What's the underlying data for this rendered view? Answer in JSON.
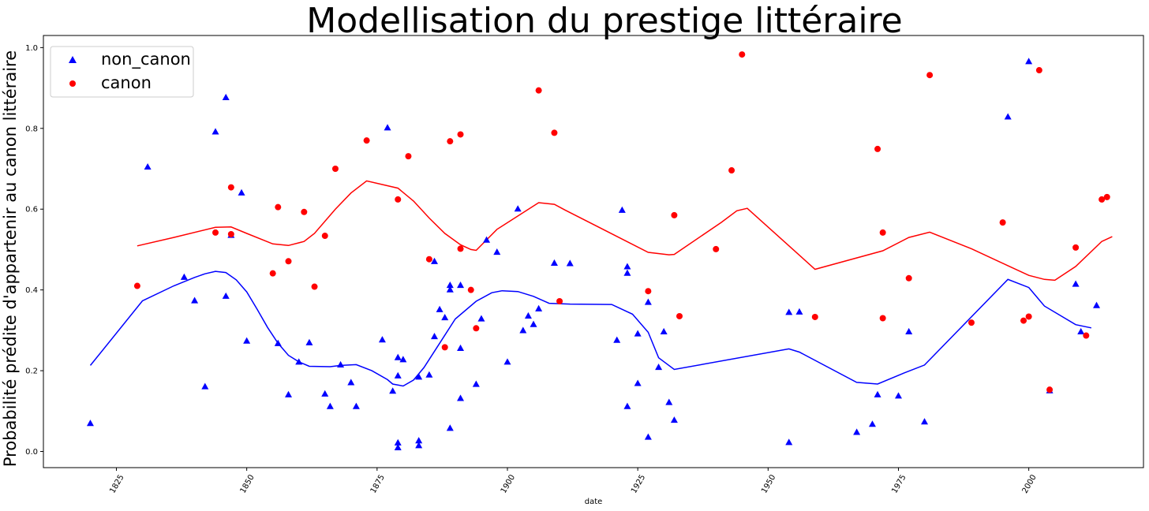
{
  "chart_data": {
    "type": "scatter",
    "title": "Modellisation du prestige littéraire",
    "xlabel": "date",
    "ylabel": "Probabilité prédite d'appartenir au canon littéraire",
    "xlim": [
      1811,
      2022
    ],
    "ylim": [
      -0.04,
      1.03
    ],
    "xticks": [
      1825,
      1850,
      1875,
      1900,
      1925,
      1950,
      1975,
      2000
    ],
    "xtick_labels": [
      "1825",
      "1850",
      "1875",
      "1900",
      "1925",
      "1950",
      "1975",
      "2000"
    ],
    "yticks": [
      0.0,
      0.2,
      0.4,
      0.6,
      0.8,
      1.0
    ],
    "ytick_labels": [
      "0.0",
      "0.2",
      "0.4",
      "0.6",
      "0.8",
      "1.0"
    ],
    "grid": false,
    "legend_position": "top-left",
    "legend": [
      "non_canon",
      "canon"
    ],
    "series": [
      {
        "name": "non_canon",
        "color": "#0000ff",
        "marker": "triangle",
        "points": [
          [
            1820,
            0.07
          ],
          [
            1831,
            0.705
          ],
          [
            1838,
            0.432
          ],
          [
            1840,
            0.374
          ],
          [
            1842,
            0.161
          ],
          [
            1844,
            0.792
          ],
          [
            1846,
            0.877
          ],
          [
            1846,
            0.385
          ],
          [
            1847,
            0.536
          ],
          [
            1849,
            0.641
          ],
          [
            1850,
            0.274
          ],
          [
            1856,
            0.268
          ],
          [
            1858,
            0.141
          ],
          [
            1860,
            0.222
          ],
          [
            1862,
            0.27
          ],
          [
            1865,
            0.143
          ],
          [
            1866,
            0.112
          ],
          [
            1868,
            0.215
          ],
          [
            1870,
            0.171
          ],
          [
            1871,
            0.112
          ],
          [
            1876,
            0.277
          ],
          [
            1877,
            0.802
          ],
          [
            1878,
            0.15
          ],
          [
            1879,
            0.233
          ],
          [
            1879,
            0.188
          ],
          [
            1879,
            0.022
          ],
          [
            1879,
            0.01
          ],
          [
            1880,
            0.228
          ],
          [
            1883,
            0.185
          ],
          [
            1883,
            0.027
          ],
          [
            1883,
            0.015
          ],
          [
            1885,
            0.19
          ],
          [
            1886,
            0.471
          ],
          [
            1886,
            0.285
          ],
          [
            1887,
            0.352
          ],
          [
            1888,
            0.332
          ],
          [
            1889,
            0.412
          ],
          [
            1889,
            0.401
          ],
          [
            1889,
            0.058
          ],
          [
            1891,
            0.412
          ],
          [
            1891,
            0.256
          ],
          [
            1891,
            0.132
          ],
          [
            1894,
            0.167
          ],
          [
            1895,
            0.329
          ],
          [
            1896,
            0.524
          ],
          [
            1898,
            0.494
          ],
          [
            1900,
            0.222
          ],
          [
            1902,
            0.601
          ],
          [
            1903,
            0.3
          ],
          [
            1904,
            0.336
          ],
          [
            1905,
            0.315
          ],
          [
            1906,
            0.354
          ],
          [
            1909,
            0.467
          ],
          [
            1912,
            0.466
          ],
          [
            1921,
            0.276
          ],
          [
            1922,
            0.598
          ],
          [
            1923,
            0.458
          ],
          [
            1923,
            0.442
          ],
          [
            1923,
            0.112
          ],
          [
            1925,
            0.292
          ],
          [
            1925,
            0.169
          ],
          [
            1927,
            0.37
          ],
          [
            1927,
            0.036
          ],
          [
            1929,
            0.209
          ],
          [
            1930,
            0.297
          ],
          [
            1931,
            0.122
          ],
          [
            1932,
            0.078
          ],
          [
            1954,
            0.345
          ],
          [
            1954,
            0.023
          ],
          [
            1956,
            0.346
          ],
          [
            1967,
            0.048
          ],
          [
            1970,
            0.068
          ],
          [
            1971,
            0.141
          ],
          [
            1975,
            0.138
          ],
          [
            1977,
            0.297
          ],
          [
            1980,
            0.074
          ],
          [
            1996,
            0.829
          ],
          [
            2000,
            0.966
          ],
          [
            2004,
            0.151
          ],
          [
            2009,
            0.415
          ],
          [
            2010,
            0.297
          ],
          [
            2013,
            0.362
          ]
        ]
      },
      {
        "name": "canon",
        "color": "#ff0000",
        "marker": "circle",
        "points": [
          [
            1829,
            0.41
          ],
          [
            1844,
            0.542
          ],
          [
            1847,
            0.654
          ],
          [
            1847,
            0.538
          ],
          [
            1855,
            0.441
          ],
          [
            1856,
            0.605
          ],
          [
            1858,
            0.471
          ],
          [
            1861,
            0.593
          ],
          [
            1863,
            0.408
          ],
          [
            1865,
            0.534
          ],
          [
            1867,
            0.7
          ],
          [
            1873,
            0.77
          ],
          [
            1879,
            0.624
          ],
          [
            1881,
            0.731
          ],
          [
            1885,
            0.476
          ],
          [
            1888,
            0.258
          ],
          [
            1889,
            0.768
          ],
          [
            1891,
            0.785
          ],
          [
            1891,
            0.502
          ],
          [
            1893,
            0.4
          ],
          [
            1894,
            0.305
          ],
          [
            1906,
            0.894
          ],
          [
            1909,
            0.789
          ],
          [
            1910,
            0.372
          ],
          [
            1927,
            0.397
          ],
          [
            1932,
            0.585
          ],
          [
            1933,
            0.335
          ],
          [
            1940,
            0.501
          ],
          [
            1943,
            0.696
          ],
          [
            1945,
            0.983
          ],
          [
            1959,
            0.333
          ],
          [
            1971,
            0.749
          ],
          [
            1972,
            0.542
          ],
          [
            1972,
            0.33
          ],
          [
            1977,
            0.429
          ],
          [
            1981,
            0.932
          ],
          [
            1989,
            0.319
          ],
          [
            1995,
            0.567
          ],
          [
            1999,
            0.324
          ],
          [
            2000,
            0.334
          ],
          [
            2002,
            0.944
          ],
          [
            2004,
            0.153
          ],
          [
            2009,
            0.505
          ],
          [
            2011,
            0.287
          ],
          [
            2014,
            0.624
          ],
          [
            2015,
            0.63
          ]
        ]
      },
      {
        "name": "non_canon_trend",
        "color": "#0000ff",
        "type": "line",
        "points": [
          [
            1820,
            0.213
          ],
          [
            1830,
            0.373
          ],
          [
            1836,
            0.41
          ],
          [
            1840,
            0.431
          ],
          [
            1842,
            0.44
          ],
          [
            1844,
            0.446
          ],
          [
            1846,
            0.443
          ],
          [
            1848,
            0.425
          ],
          [
            1850,
            0.395
          ],
          [
            1852,
            0.352
          ],
          [
            1854,
            0.307
          ],
          [
            1856,
            0.268
          ],
          [
            1858,
            0.238
          ],
          [
            1860,
            0.222
          ],
          [
            1862,
            0.211
          ],
          [
            1866,
            0.21
          ],
          [
            1868,
            0.213
          ],
          [
            1871,
            0.215
          ],
          [
            1874,
            0.2
          ],
          [
            1877,
            0.178
          ],
          [
            1878,
            0.167
          ],
          [
            1880,
            0.162
          ],
          [
            1882,
            0.177
          ],
          [
            1884,
            0.208
          ],
          [
            1887,
            0.268
          ],
          [
            1890,
            0.328
          ],
          [
            1894,
            0.372
          ],
          [
            1897,
            0.393
          ],
          [
            1899,
            0.398
          ],
          [
            1902,
            0.396
          ],
          [
            1905,
            0.384
          ],
          [
            1908,
            0.367
          ],
          [
            1912,
            0.365
          ],
          [
            1920,
            0.364
          ],
          [
            1924,
            0.34
          ],
          [
            1927,
            0.295
          ],
          [
            1929,
            0.232
          ],
          [
            1932,
            0.203
          ],
          [
            1954,
            0.254
          ],
          [
            1956,
            0.246
          ],
          [
            1967,
            0.171
          ],
          [
            1971,
            0.167
          ],
          [
            1976,
            0.194
          ],
          [
            1980,
            0.214
          ],
          [
            1996,
            0.426
          ],
          [
            2000,
            0.406
          ],
          [
            2003,
            0.36
          ],
          [
            2009,
            0.314
          ],
          [
            2012,
            0.306
          ]
        ]
      },
      {
        "name": "canon_trend",
        "color": "#ff0000",
        "type": "line",
        "points": [
          [
            1829,
            0.509
          ],
          [
            1836,
            0.53
          ],
          [
            1844,
            0.555
          ],
          [
            1847,
            0.556
          ],
          [
            1850,
            0.54
          ],
          [
            1855,
            0.514
          ],
          [
            1858,
            0.51
          ],
          [
            1861,
            0.52
          ],
          [
            1863,
            0.54
          ],
          [
            1867,
            0.6
          ],
          [
            1870,
            0.64
          ],
          [
            1873,
            0.67
          ],
          [
            1879,
            0.652
          ],
          [
            1882,
            0.62
          ],
          [
            1885,
            0.578
          ],
          [
            1888,
            0.54
          ],
          [
            1891,
            0.512
          ],
          [
            1893,
            0.5
          ],
          [
            1894,
            0.498
          ],
          [
            1898,
            0.55
          ],
          [
            1906,
            0.616
          ],
          [
            1909,
            0.612
          ],
          [
            1911,
            0.598
          ],
          [
            1927,
            0.493
          ],
          [
            1931,
            0.487
          ],
          [
            1932,
            0.488
          ],
          [
            1941,
            0.567
          ],
          [
            1944,
            0.596
          ],
          [
            1946,
            0.602
          ],
          [
            1959,
            0.451
          ],
          [
            1972,
            0.497
          ],
          [
            1977,
            0.53
          ],
          [
            1981,
            0.543
          ],
          [
            1989,
            0.502
          ],
          [
            1996,
            0.46
          ],
          [
            2000,
            0.436
          ],
          [
            2003,
            0.426
          ],
          [
            2005,
            0.424
          ],
          [
            2009,
            0.458
          ],
          [
            2014,
            0.52
          ],
          [
            2016,
            0.532
          ]
        ]
      }
    ]
  }
}
